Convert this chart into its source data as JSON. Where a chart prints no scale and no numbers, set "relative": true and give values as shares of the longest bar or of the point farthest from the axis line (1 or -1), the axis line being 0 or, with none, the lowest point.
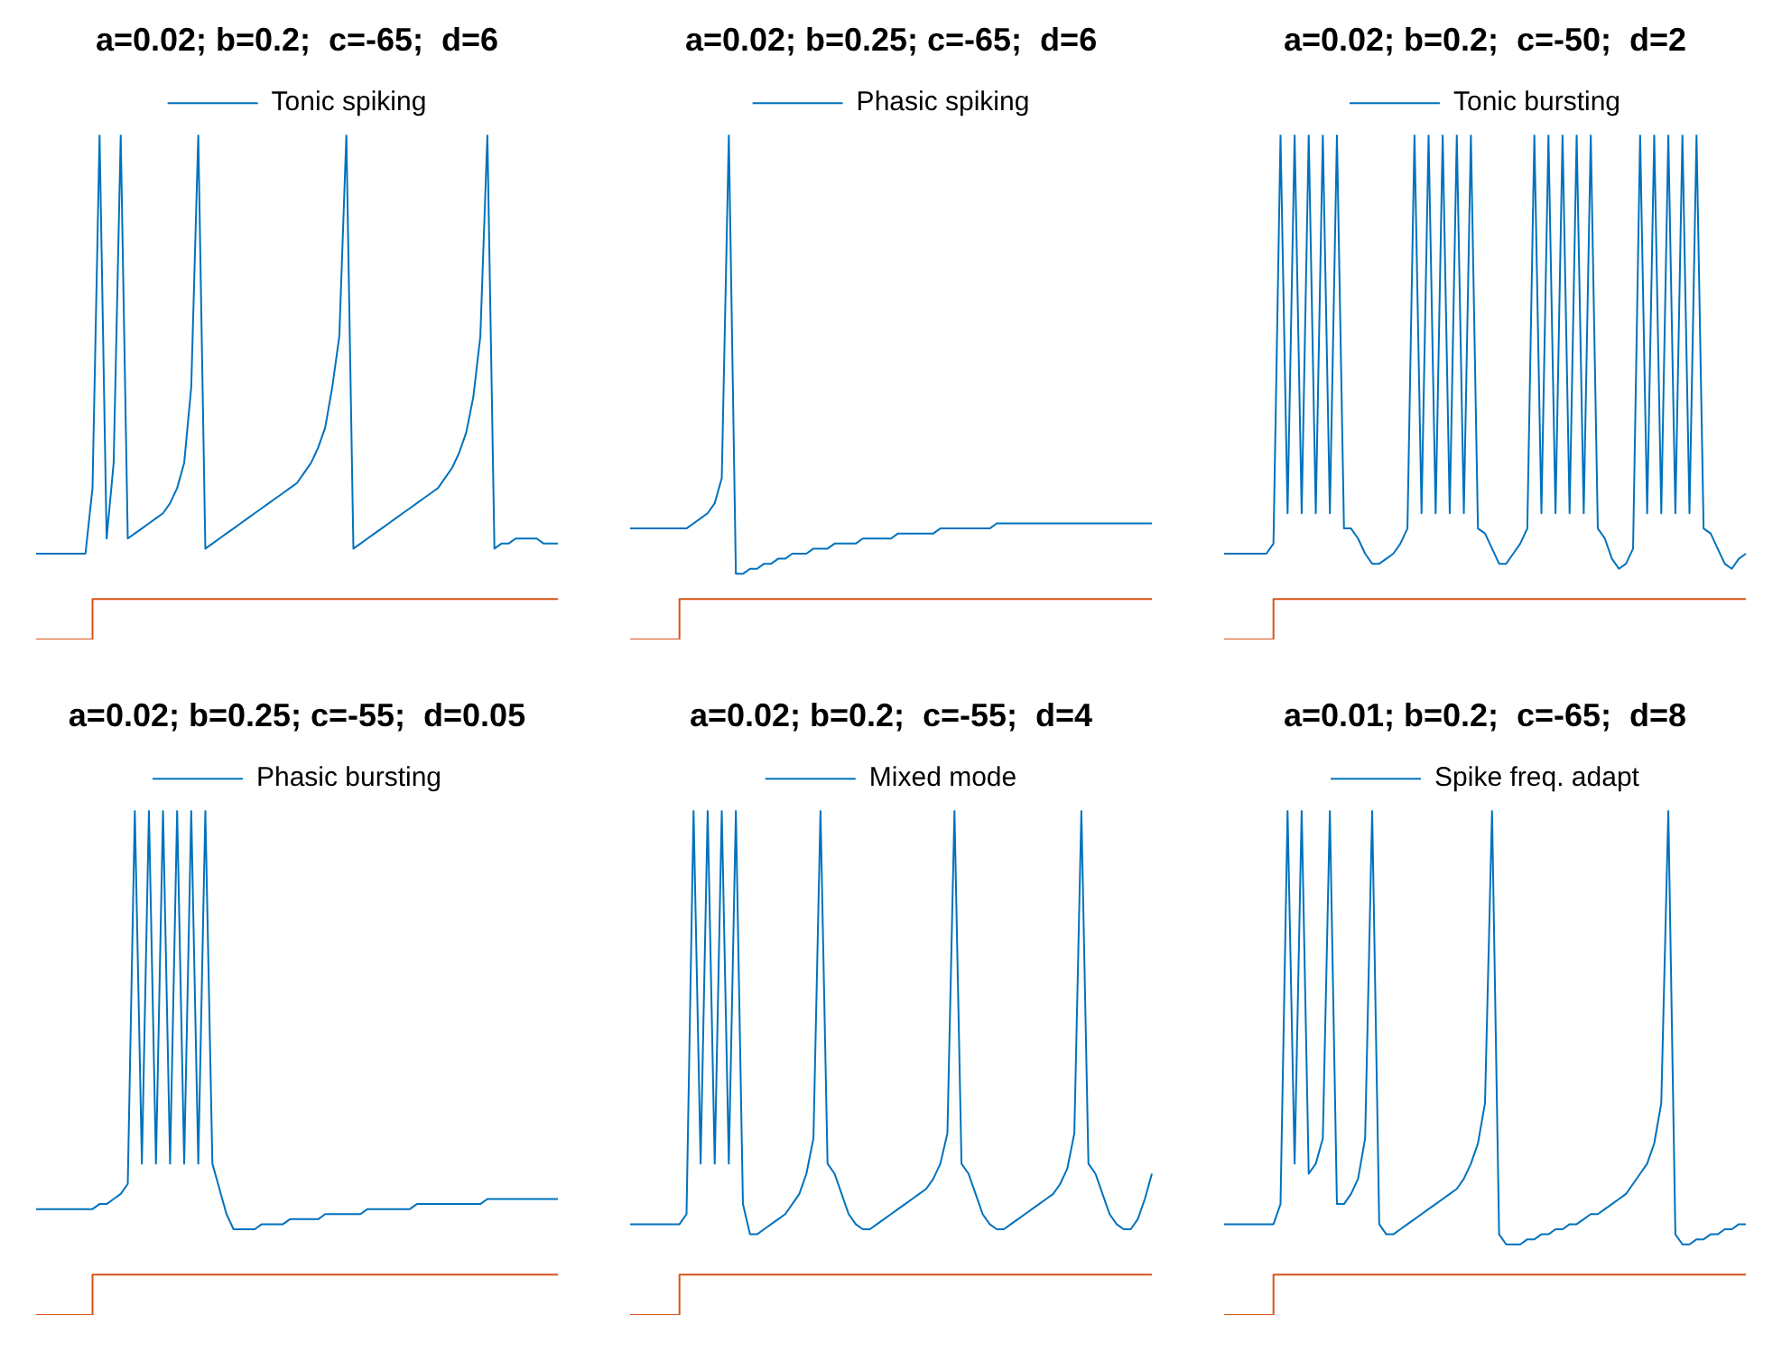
{
  "chart_data": [
    {
      "type": "line",
      "title": "a=0.02; b=0.2;  c=-65;  d=6",
      "relative": true,
      "legend": "top",
      "categories": [
        null,
        null,
        null,
        null,
        null,
        null,
        null,
        null,
        null,
        null,
        null,
        null,
        null,
        null,
        null,
        null,
        null,
        null,
        null,
        null,
        null,
        null,
        null,
        null,
        null,
        null,
        null,
        null,
        null,
        null,
        null,
        null,
        null,
        null,
        null,
        null,
        null,
        null,
        null,
        null,
        null,
        null,
        null,
        null,
        null,
        null,
        null,
        null,
        null,
        null,
        null,
        null,
        null,
        null,
        null,
        null,
        null,
        null,
        null,
        null,
        null,
        null,
        null,
        null,
        null,
        null,
        null,
        null,
        null,
        null,
        null,
        null,
        null,
        null,
        null
      ],
      "series": [
        {
          "name": "Tonic spiking",
          "color": "#0072bd",
          "values": [
            0.17,
            0.17,
            0.17,
            0.17,
            0.17,
            0.17,
            0.17,
            0.17,
            0.3,
            1,
            0.2,
            0.35,
            1,
            0.2,
            0.21,
            0.22,
            0.23,
            0.24,
            0.25,
            0.27,
            0.3,
            0.35,
            0.5,
            1,
            0.18,
            0.19,
            0.2,
            0.21,
            0.22,
            0.23,
            0.24,
            0.25,
            0.26,
            0.27,
            0.28,
            0.29,
            0.3,
            0.31,
            0.33,
            0.35,
            0.38,
            0.42,
            0.5,
            0.6,
            1,
            0.18,
            0.19,
            0.2,
            0.21,
            0.22,
            0.23,
            0.24,
            0.25,
            0.26,
            0.27,
            0.28,
            0.29,
            0.3,
            0.32,
            0.34,
            0.37,
            0.41,
            0.48,
            0.6,
            1,
            0.18,
            0.19,
            0.19,
            0.2,
            0.2,
            0.2,
            0.2,
            0.19,
            0.19,
            0.19
          ]
        },
        {
          "type": "step",
          "color": "#d95319",
          "values": [
            0,
            0,
            0,
            0,
            0,
            0,
            0,
            0,
            0.08,
            0.08,
            0.08,
            0.08,
            0.08,
            0.08,
            0.08,
            0.08,
            0.08,
            0.08,
            0.08,
            0.08,
            0.08,
            0.08,
            0.08,
            0.08,
            0.08,
            0.08,
            0.08,
            0.08,
            0.08,
            0.08,
            0.08,
            0.08,
            0.08,
            0.08,
            0.08,
            0.08,
            0.08,
            0.08,
            0.08,
            0.08,
            0.08,
            0.08,
            0.08,
            0.08,
            0.08,
            0.08,
            0.08,
            0.08,
            0.08,
            0.08,
            0.08,
            0.08,
            0.08,
            0.08,
            0.08,
            0.08,
            0.08,
            0.08,
            0.08,
            0.08,
            0.08,
            0.08,
            0.08,
            0.08,
            0.08,
            0.08,
            0.08,
            0.08,
            0.08,
            0.08,
            0.08,
            0.08,
            0.08,
            0.08,
            0.08
          ]
        }
      ]
    },
    {
      "type": "line",
      "title": "a=0.02; b=0.25; c=-65;  d=6",
      "relative": true,
      "legend": "top",
      "categories": [
        null,
        null,
        null,
        null,
        null,
        null,
        null,
        null,
        null,
        null,
        null,
        null,
        null,
        null,
        null,
        null,
        null,
        null,
        null,
        null,
        null,
        null,
        null,
        null,
        null,
        null,
        null,
        null,
        null,
        null,
        null,
        null,
        null,
        null,
        null,
        null,
        null,
        null,
        null,
        null,
        null,
        null,
        null,
        null,
        null,
        null,
        null,
        null,
        null,
        null,
        null,
        null,
        null,
        null,
        null,
        null,
        null,
        null,
        null,
        null,
        null,
        null,
        null,
        null,
        null,
        null,
        null,
        null,
        null,
        null,
        null,
        null,
        null,
        null,
        null
      ],
      "series": [
        {
          "name": "Phasic spiking",
          "color": "#0072bd",
          "values": [
            0.22,
            0.22,
            0.22,
            0.22,
            0.22,
            0.22,
            0.22,
            0.22,
            0.22,
            0.23,
            0.24,
            0.25,
            0.27,
            0.32,
            1,
            0.13,
            0.13,
            0.14,
            0.14,
            0.15,
            0.15,
            0.16,
            0.16,
            0.17,
            0.17,
            0.17,
            0.18,
            0.18,
            0.18,
            0.19,
            0.19,
            0.19,
            0.19,
            0.2,
            0.2,
            0.2,
            0.2,
            0.2,
            0.21,
            0.21,
            0.21,
            0.21,
            0.21,
            0.21,
            0.22,
            0.22,
            0.22,
            0.22,
            0.22,
            0.22,
            0.22,
            0.22,
            0.23,
            0.23,
            0.23,
            0.23,
            0.23,
            0.23,
            0.23,
            0.23,
            0.23,
            0.23,
            0.23,
            0.23,
            0.23,
            0.23,
            0.23,
            0.23,
            0.23,
            0.23,
            0.23,
            0.23,
            0.23,
            0.23,
            0.23
          ]
        },
        {
          "type": "step",
          "color": "#d95319",
          "values": [
            0,
            0,
            0,
            0,
            0,
            0,
            0,
            0.08,
            0.08,
            0.08,
            0.08,
            0.08,
            0.08,
            0.08,
            0.08,
            0.08,
            0.08,
            0.08,
            0.08,
            0.08,
            0.08,
            0.08,
            0.08,
            0.08,
            0.08,
            0.08,
            0.08,
            0.08,
            0.08,
            0.08,
            0.08,
            0.08,
            0.08,
            0.08,
            0.08,
            0.08,
            0.08,
            0.08,
            0.08,
            0.08,
            0.08,
            0.08,
            0.08,
            0.08,
            0.08,
            0.08,
            0.08,
            0.08,
            0.08,
            0.08,
            0.08,
            0.08,
            0.08,
            0.08,
            0.08,
            0.08,
            0.08,
            0.08,
            0.08,
            0.08,
            0.08,
            0.08,
            0.08,
            0.08,
            0.08,
            0.08,
            0.08,
            0.08,
            0.08,
            0.08,
            0.08,
            0.08,
            0.08,
            0.08,
            0.08
          ]
        }
      ]
    },
    {
      "type": "line",
      "title": "a=0.02; b=0.2;  c=-50;  d=2",
      "relative": true,
      "legend": "top",
      "categories": [
        null,
        null,
        null,
        null,
        null,
        null,
        null,
        null,
        null,
        null,
        null,
        null,
        null,
        null,
        null,
        null,
        null,
        null,
        null,
        null,
        null,
        null,
        null,
        null,
        null,
        null,
        null,
        null,
        null,
        null,
        null,
        null,
        null,
        null,
        null,
        null,
        null,
        null,
        null,
        null,
        null,
        null,
        null,
        null,
        null,
        null,
        null,
        null,
        null,
        null,
        null,
        null,
        null,
        null,
        null,
        null,
        null,
        null,
        null,
        null,
        null,
        null,
        null,
        null,
        null,
        null,
        null,
        null,
        null,
        null,
        null,
        null,
        null,
        null,
        null
      ],
      "series": [
        {
          "name": "Tonic bursting",
          "color": "#0072bd",
          "values": [
            0.17,
            0.17,
            0.17,
            0.17,
            0.17,
            0.17,
            0.17,
            0.19,
            1,
            0.25,
            1,
            0.25,
            1,
            0.25,
            1,
            0.25,
            1,
            0.22,
            0.22,
            0.2,
            0.17,
            0.15,
            0.15,
            0.16,
            0.17,
            0.19,
            0.22,
            1,
            0.25,
            1,
            0.25,
            1,
            0.25,
            1,
            0.25,
            1,
            0.22,
            0.21,
            0.18,
            0.15,
            0.15,
            0.17,
            0.19,
            0.22,
            1,
            0.25,
            1,
            0.25,
            1,
            0.25,
            1,
            0.25,
            1,
            0.22,
            0.2,
            0.16,
            0.14,
            0.15,
            0.18,
            1,
            0.25,
            1,
            0.25,
            1,
            0.25,
            1,
            0.25,
            1,
            0.22,
            0.21,
            0.18,
            0.15,
            0.14,
            0.16,
            0.17
          ]
        },
        {
          "type": "step",
          "color": "#d95319",
          "values": [
            0,
            0,
            0,
            0,
            0,
            0,
            0,
            0.08,
            0.08,
            0.08,
            0.08,
            0.08,
            0.08,
            0.08,
            0.08,
            0.08,
            0.08,
            0.08,
            0.08,
            0.08,
            0.08,
            0.08,
            0.08,
            0.08,
            0.08,
            0.08,
            0.08,
            0.08,
            0.08,
            0.08,
            0.08,
            0.08,
            0.08,
            0.08,
            0.08,
            0.08,
            0.08,
            0.08,
            0.08,
            0.08,
            0.08,
            0.08,
            0.08,
            0.08,
            0.08,
            0.08,
            0.08,
            0.08,
            0.08,
            0.08,
            0.08,
            0.08,
            0.08,
            0.08,
            0.08,
            0.08,
            0.08,
            0.08,
            0.08,
            0.08,
            0.08,
            0.08,
            0.08,
            0.08,
            0.08,
            0.08,
            0.08,
            0.08,
            0.08,
            0.08,
            0.08,
            0.08,
            0.08,
            0.08,
            0.08
          ]
        }
      ]
    },
    {
      "type": "line",
      "title": "a=0.02; b=0.25; c=-55;  d=0.05",
      "relative": true,
      "legend": "top",
      "categories": [
        null,
        null,
        null,
        null,
        null,
        null,
        null,
        null,
        null,
        null,
        null,
        null,
        null,
        null,
        null,
        null,
        null,
        null,
        null,
        null,
        null,
        null,
        null,
        null,
        null,
        null,
        null,
        null,
        null,
        null,
        null,
        null,
        null,
        null,
        null,
        null,
        null,
        null,
        null,
        null,
        null,
        null,
        null,
        null,
        null,
        null,
        null,
        null,
        null,
        null,
        null,
        null,
        null,
        null,
        null,
        null,
        null,
        null,
        null,
        null,
        null,
        null,
        null,
        null,
        null,
        null,
        null,
        null,
        null,
        null,
        null,
        null,
        null,
        null,
        null
      ],
      "series": [
        {
          "name": "Phasic bursting",
          "color": "#0072bd",
          "values": [
            0.21,
            0.21,
            0.21,
            0.21,
            0.21,
            0.21,
            0.21,
            0.21,
            0.21,
            0.22,
            0.22,
            0.23,
            0.24,
            0.26,
            1,
            0.3,
            1,
            0.3,
            1,
            0.3,
            1,
            0.3,
            1,
            0.3,
            1,
            0.3,
            0.25,
            0.2,
            0.17,
            0.17,
            0.17,
            0.17,
            0.18,
            0.18,
            0.18,
            0.18,
            0.19,
            0.19,
            0.19,
            0.19,
            0.19,
            0.2,
            0.2,
            0.2,
            0.2,
            0.2,
            0.2,
            0.21,
            0.21,
            0.21,
            0.21,
            0.21,
            0.21,
            0.21,
            0.22,
            0.22,
            0.22,
            0.22,
            0.22,
            0.22,
            0.22,
            0.22,
            0.22,
            0.22,
            0.23,
            0.23,
            0.23,
            0.23,
            0.23,
            0.23,
            0.23,
            0.23,
            0.23,
            0.23,
            0.23
          ]
        },
        {
          "type": "step",
          "color": "#d95319",
          "values": [
            0,
            0,
            0,
            0,
            0,
            0,
            0,
            0,
            0.08,
            0.08,
            0.08,
            0.08,
            0.08,
            0.08,
            0.08,
            0.08,
            0.08,
            0.08,
            0.08,
            0.08,
            0.08,
            0.08,
            0.08,
            0.08,
            0.08,
            0.08,
            0.08,
            0.08,
            0.08,
            0.08,
            0.08,
            0.08,
            0.08,
            0.08,
            0.08,
            0.08,
            0.08,
            0.08,
            0.08,
            0.08,
            0.08,
            0.08,
            0.08,
            0.08,
            0.08,
            0.08,
            0.08,
            0.08,
            0.08,
            0.08,
            0.08,
            0.08,
            0.08,
            0.08,
            0.08,
            0.08,
            0.08,
            0.08,
            0.08,
            0.08,
            0.08,
            0.08,
            0.08,
            0.08,
            0.08,
            0.08,
            0.08,
            0.08,
            0.08,
            0.08,
            0.08,
            0.08,
            0.08,
            0.08,
            0.08
          ]
        }
      ]
    },
    {
      "type": "line",
      "title": "a=0.02; b=0.2;  c=-55;  d=4",
      "relative": true,
      "legend": "top",
      "categories": [
        null,
        null,
        null,
        null,
        null,
        null,
        null,
        null,
        null,
        null,
        null,
        null,
        null,
        null,
        null,
        null,
        null,
        null,
        null,
        null,
        null,
        null,
        null,
        null,
        null,
        null,
        null,
        null,
        null,
        null,
        null,
        null,
        null,
        null,
        null,
        null,
        null,
        null,
        null,
        null,
        null,
        null,
        null,
        null,
        null,
        null,
        null,
        null,
        null,
        null,
        null,
        null,
        null,
        null,
        null,
        null,
        null,
        null,
        null,
        null,
        null,
        null,
        null,
        null,
        null,
        null,
        null,
        null,
        null,
        null,
        null,
        null,
        null,
        null,
        null
      ],
      "series": [
        {
          "name": "Mixed mode",
          "color": "#0072bd",
          "values": [
            0.18,
            0.18,
            0.18,
            0.18,
            0.18,
            0.18,
            0.18,
            0.18,
            0.2,
            1,
            0.3,
            1,
            0.3,
            1,
            0.3,
            1,
            0.22,
            0.16,
            0.16,
            0.17,
            0.18,
            0.19,
            0.2,
            0.22,
            0.24,
            0.28,
            0.35,
            1,
            0.3,
            0.28,
            0.24,
            0.2,
            0.18,
            0.17,
            0.17,
            0.18,
            0.19,
            0.2,
            0.21,
            0.22,
            0.23,
            0.24,
            0.25,
            0.27,
            0.3,
            0.36,
            1,
            0.3,
            0.28,
            0.24,
            0.2,
            0.18,
            0.17,
            0.17,
            0.18,
            0.19,
            0.2,
            0.21,
            0.22,
            0.23,
            0.24,
            0.26,
            0.29,
            0.36,
            1,
            0.3,
            0.28,
            0.24,
            0.2,
            0.18,
            0.17,
            0.17,
            0.19,
            0.23,
            0.28
          ]
        },
        {
          "type": "step",
          "color": "#d95319",
          "values": [
            0,
            0,
            0,
            0,
            0,
            0,
            0,
            0.08,
            0.08,
            0.08,
            0.08,
            0.08,
            0.08,
            0.08,
            0.08,
            0.08,
            0.08,
            0.08,
            0.08,
            0.08,
            0.08,
            0.08,
            0.08,
            0.08,
            0.08,
            0.08,
            0.08,
            0.08,
            0.08,
            0.08,
            0.08,
            0.08,
            0.08,
            0.08,
            0.08,
            0.08,
            0.08,
            0.08,
            0.08,
            0.08,
            0.08,
            0.08,
            0.08,
            0.08,
            0.08,
            0.08,
            0.08,
            0.08,
            0.08,
            0.08,
            0.08,
            0.08,
            0.08,
            0.08,
            0.08,
            0.08,
            0.08,
            0.08,
            0.08,
            0.08,
            0.08,
            0.08,
            0.08,
            0.08,
            0.08,
            0.08,
            0.08,
            0.08,
            0.08,
            0.08,
            0.08,
            0.08,
            0.08,
            0.08,
            0.08
          ]
        }
      ]
    },
    {
      "type": "line",
      "title": "a=0.01; b=0.2;  c=-65;  d=8",
      "relative": true,
      "legend": "top",
      "categories": [
        null,
        null,
        null,
        null,
        null,
        null,
        null,
        null,
        null,
        null,
        null,
        null,
        null,
        null,
        null,
        null,
        null,
        null,
        null,
        null,
        null,
        null,
        null,
        null,
        null,
        null,
        null,
        null,
        null,
        null,
        null,
        null,
        null,
        null,
        null,
        null,
        null,
        null,
        null,
        null,
        null,
        null,
        null,
        null,
        null,
        null,
        null,
        null,
        null,
        null,
        null,
        null,
        null,
        null,
        null,
        null,
        null,
        null,
        null,
        null,
        null,
        null,
        null,
        null,
        null,
        null,
        null,
        null,
        null,
        null,
        null,
        null,
        null,
        null,
        null
      ],
      "series": [
        {
          "name": "Spike freq. adapt",
          "color": "#0072bd",
          "values": [
            0.18,
            0.18,
            0.18,
            0.18,
            0.18,
            0.18,
            0.18,
            0.18,
            0.22,
            1,
            0.3,
            1,
            0.28,
            0.3,
            0.35,
            1,
            0.22,
            0.22,
            0.24,
            0.27,
            0.35,
            1,
            0.18,
            0.16,
            0.16,
            0.17,
            0.18,
            0.19,
            0.2,
            0.21,
            0.22,
            0.23,
            0.24,
            0.25,
            0.27,
            0.3,
            0.34,
            0.42,
            1,
            0.16,
            0.14,
            0.14,
            0.14,
            0.15,
            0.15,
            0.16,
            0.16,
            0.17,
            0.17,
            0.18,
            0.18,
            0.19,
            0.2,
            0.2,
            0.21,
            0.22,
            0.23,
            0.24,
            0.26,
            0.28,
            0.3,
            0.34,
            0.42,
            1,
            0.16,
            0.14,
            0.14,
            0.15,
            0.15,
            0.16,
            0.16,
            0.17,
            0.17,
            0.18,
            0.18
          ]
        },
        {
          "type": "step",
          "color": "#d95319",
          "values": [
            0,
            0,
            0,
            0,
            0,
            0,
            0,
            0.08,
            0.08,
            0.08,
            0.08,
            0.08,
            0.08,
            0.08,
            0.08,
            0.08,
            0.08,
            0.08,
            0.08,
            0.08,
            0.08,
            0.08,
            0.08,
            0.08,
            0.08,
            0.08,
            0.08,
            0.08,
            0.08,
            0.08,
            0.08,
            0.08,
            0.08,
            0.08,
            0.08,
            0.08,
            0.08,
            0.08,
            0.08,
            0.08,
            0.08,
            0.08,
            0.08,
            0.08,
            0.08,
            0.08,
            0.08,
            0.08,
            0.08,
            0.08,
            0.08,
            0.08,
            0.08,
            0.08,
            0.08,
            0.08,
            0.08,
            0.08,
            0.08,
            0.08,
            0.08,
            0.08,
            0.08,
            0.08,
            0.08,
            0.08,
            0.08,
            0.08,
            0.08,
            0.08,
            0.08,
            0.08,
            0.08,
            0.08,
            0.08
          ]
        }
      ]
    }
  ]
}
